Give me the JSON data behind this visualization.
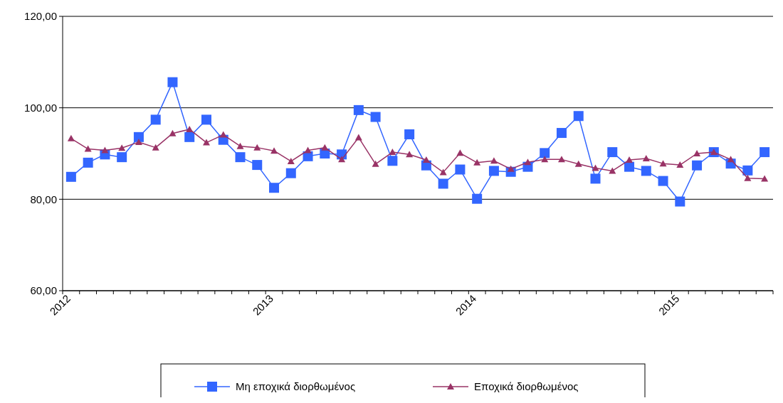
{
  "chart_data": {
    "type": "line",
    "categories": [
      "2012",
      null,
      null,
      null,
      null,
      null,
      null,
      null,
      null,
      null,
      null,
      null,
      "2013",
      null,
      null,
      null,
      null,
      null,
      null,
      null,
      null,
      null,
      null,
      null,
      "2014",
      null,
      null,
      null,
      null,
      null,
      null,
      null,
      null,
      null,
      null,
      null,
      "2015",
      null,
      null,
      null,
      null,
      null
    ],
    "series": [
      {
        "name": "Μη εποχικά διορθωμένος",
        "color": "#3366ff",
        "marker": "square",
        "values": [
          84.9,
          88.0,
          89.8,
          89.2,
          93.6,
          97.4,
          105.6,
          93.6,
          97.4,
          93.0,
          89.2,
          87.5,
          82.5,
          85.7,
          89.4,
          90.0,
          89.8,
          99.5,
          98.0,
          88.4,
          94.2,
          87.4,
          83.4,
          86.5,
          80.1,
          86.2,
          86.0,
          87.1,
          90.1,
          94.5,
          98.2,
          84.5,
          90.3,
          87.1,
          86.2,
          84.0,
          79.5,
          87.4,
          90.3,
          87.8,
          86.3,
          90.3
        ]
      },
      {
        "name": "Εποχικά διορθωμένος",
        "color": "#993366",
        "marker": "triangle",
        "values": [
          93.3,
          91.0,
          90.7,
          91.2,
          92.5,
          91.3,
          94.4,
          95.3,
          92.4,
          94.1,
          91.6,
          91.3,
          90.6,
          88.3,
          90.7,
          91.3,
          88.7,
          93.5,
          87.7,
          90.3,
          89.8,
          88.6,
          85.9,
          90.1,
          88.0,
          88.4,
          86.6,
          88.1,
          88.7,
          88.7,
          87.7,
          86.8,
          86.2,
          88.6,
          88.9,
          87.8,
          87.5,
          90.0,
          90.3,
          88.7,
          84.6,
          84.5
        ]
      }
    ],
    "ylim": [
      60,
      120
    ],
    "yticks": [
      {
        "value": 60,
        "label": "60,00"
      },
      {
        "value": 80,
        "label": "80,00"
      },
      {
        "value": 100,
        "label": "100,00"
      },
      {
        "value": 120,
        "label": "120,00"
      }
    ],
    "grid": "y",
    "legend": "bottom"
  }
}
